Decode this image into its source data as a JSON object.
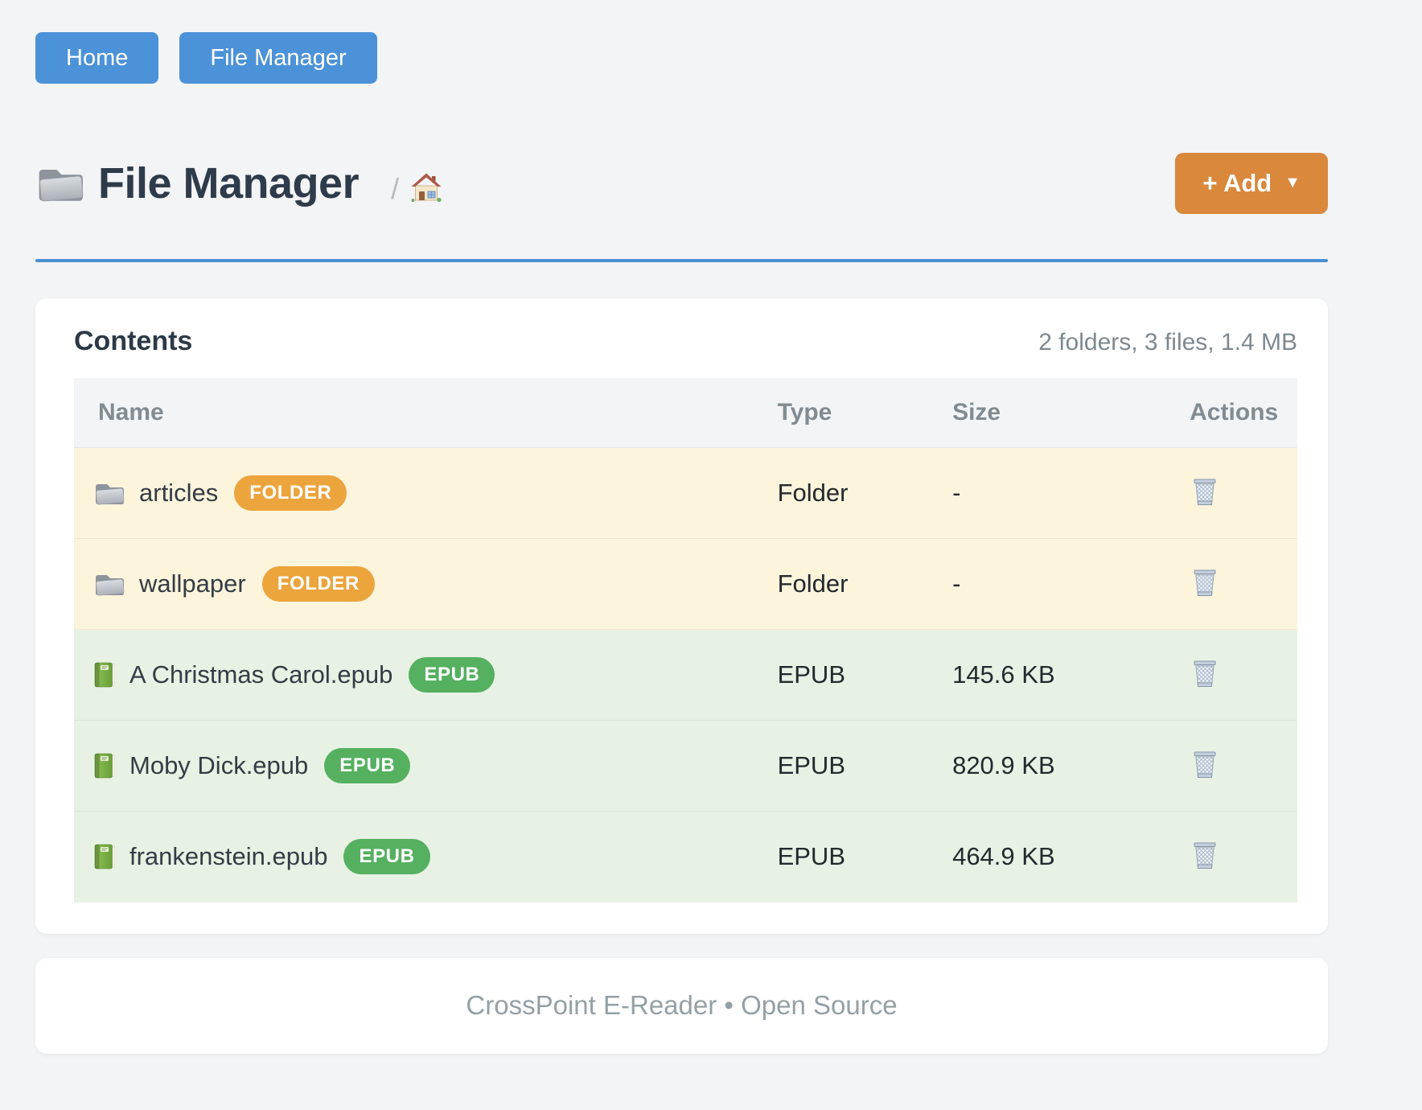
{
  "nav": {
    "buttons": [
      {
        "label": "Home"
      },
      {
        "label": "File Manager"
      }
    ]
  },
  "header": {
    "title": "File Manager",
    "breadcrumb_separator": "/",
    "add_button_label": "+ Add",
    "add_caret": "▼"
  },
  "panel": {
    "heading": "Contents",
    "summary": "2 folders, 3 files, 1.4 MB"
  },
  "table": {
    "columns": [
      "Name",
      "Type",
      "Size",
      "Actions"
    ],
    "rows": [
      {
        "name": "articles",
        "badge": "FOLDER",
        "kind": "folder",
        "type": "Folder",
        "size": "-"
      },
      {
        "name": "wallpaper",
        "badge": "FOLDER",
        "kind": "folder",
        "type": "Folder",
        "size": "-"
      },
      {
        "name": "A Christmas Carol.epub",
        "badge": "EPUB",
        "kind": "epub",
        "type": "EPUB",
        "size": "145.6 KB"
      },
      {
        "name": "Moby Dick.epub",
        "badge": "EPUB",
        "kind": "epub",
        "type": "EPUB",
        "size": "820.9 KB"
      },
      {
        "name": "frankenstein.epub",
        "badge": "EPUB",
        "kind": "epub",
        "type": "EPUB",
        "size": "464.9 KB"
      }
    ]
  },
  "footer": {
    "text": "CrossPoint E-Reader • Open Source"
  },
  "colors": {
    "page_background": "#f3f4f5",
    "nav_button_blue": "#4b92d8",
    "divider_blue": "#4a90d2",
    "add_button_orange": "#d9883c",
    "folder_badge_orange": "#eca43d",
    "epub_badge_green": "#55b060",
    "folder_row_background": "#fdf4dc",
    "epub_row_background": "#e8f2e4",
    "heading_dark": "#2e3b4a"
  }
}
